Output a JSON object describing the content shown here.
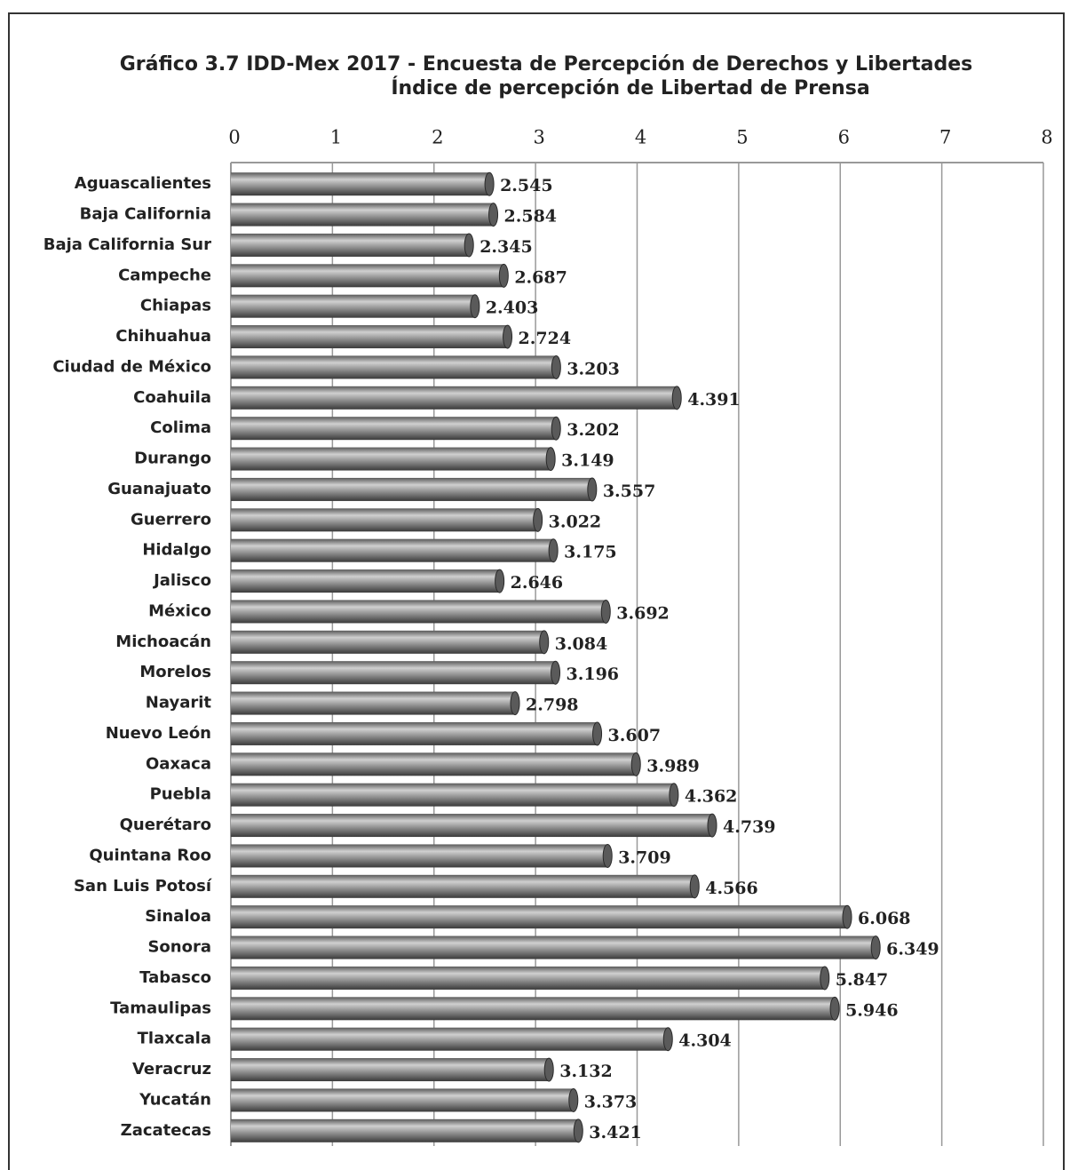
{
  "chart_data": {
    "type": "bar",
    "orientation": "horizontal",
    "title": "Gráfico 3.7 IDD-Mex 2017 - Encuesta de Percepción de Derechos y Libertades",
    "subtitle": "Índice de percepción de Libertad de Prensa",
    "categories": [
      "Aguascalientes",
      "Baja California",
      "Baja California Sur",
      "Campeche",
      "Chiapas",
      "Chihuahua",
      "Ciudad de México",
      "Coahuila",
      "Colima",
      "Durango",
      "Guanajuato",
      "Guerrero",
      "Hidalgo",
      "Jalisco",
      "México",
      "Michoacán",
      "Morelos",
      "Nayarit",
      "Nuevo León",
      "Oaxaca",
      "Puebla",
      "Querétaro",
      "Quintana Roo",
      "San Luis Potosí",
      "Sinaloa",
      "Sonora",
      "Tabasco",
      "Tamaulipas",
      "Tlaxcala",
      "Veracruz",
      "Yucatán",
      "Zacatecas"
    ],
    "values": [
      2.545,
      2.584,
      2.345,
      2.687,
      2.403,
      2.724,
      3.203,
      4.391,
      3.202,
      3.149,
      3.557,
      3.022,
      3.175,
      2.646,
      3.692,
      3.084,
      3.196,
      2.798,
      3.607,
      3.989,
      4.362,
      4.739,
      3.709,
      4.566,
      6.068,
      6.349,
      5.847,
      5.946,
      4.304,
      3.132,
      3.373,
      3.421
    ],
    "color": "#808080",
    "xlim": [
      0,
      8
    ],
    "xticks": [
      0,
      1,
      2,
      3,
      4,
      5,
      6,
      7,
      8
    ],
    "grid": true
  }
}
